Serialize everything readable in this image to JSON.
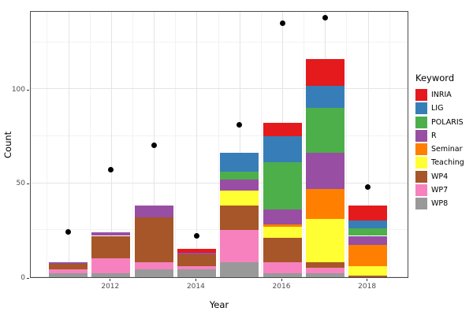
{
  "chart_data": {
    "type": "bar",
    "stacked": true,
    "title": "",
    "xlabel": "Year",
    "ylabel": "Count",
    "legend_title": "Keyword",
    "legend_position": "right",
    "grid": "on",
    "categories": [
      2011,
      2012,
      2013,
      2014,
      2015,
      2016,
      2017,
      2018
    ],
    "x_ticks": [
      {
        "label": "2012",
        "index": 1
      },
      {
        "label": "2014",
        "index": 3
      },
      {
        "label": "2016",
        "index": 5
      },
      {
        "label": "2018",
        "index": 7
      }
    ],
    "y_ticks": [
      0,
      50,
      100
    ],
    "y_minor_ticks": [
      25,
      75,
      125
    ],
    "ylim": [
      0,
      142
    ],
    "series": [
      {
        "name": "INRIA",
        "color": "#E41A1C",
        "values": [
          0,
          0,
          0,
          2,
          0,
          7,
          14,
          8
        ]
      },
      {
        "name": "LIG",
        "color": "#377EB8",
        "values": [
          0,
          0,
          0,
          0,
          10,
          14,
          12,
          4
        ]
      },
      {
        "name": "POLARIS",
        "color": "#4DAF4A",
        "values": [
          0,
          0,
          0,
          0,
          4,
          25,
          24,
          4
        ]
      },
      {
        "name": "R",
        "color": "#984EA3",
        "values": [
          1,
          2,
          6,
          1,
          6,
          8,
          19,
          5
        ]
      },
      {
        "name": "Seminar",
        "color": "#FF7F00",
        "values": [
          0,
          0,
          0,
          0,
          0,
          1,
          16,
          11
        ]
      },
      {
        "name": "Teaching",
        "color": "#FFFF33",
        "values": [
          0,
          0,
          0,
          0,
          8,
          6,
          23,
          5
        ]
      },
      {
        "name": "WP4",
        "color": "#A65628",
        "values": [
          3,
          12,
          24,
          6,
          13,
          13,
          3,
          1
        ]
      },
      {
        "name": "WP7",
        "color": "#F781BF",
        "values": [
          2,
          8,
          4,
          2,
          17,
          6,
          3,
          0
        ]
      },
      {
        "name": "WP8",
        "color": "#999999",
        "values": [
          2,
          2,
          4,
          4,
          8,
          2,
          2,
          0
        ]
      }
    ],
    "points_series": {
      "name": "yearly-dots",
      "color": "#000000",
      "values": [
        24,
        57,
        70,
        22,
        81,
        135,
        138,
        48
      ]
    }
  },
  "colors": {
    "axis_text": "#4d4d4d",
    "panel_border": "#4a4a4a",
    "grid_major": "#e4e4e4",
    "grid_minor": "#f2f2f2",
    "background": "#ffffff"
  }
}
